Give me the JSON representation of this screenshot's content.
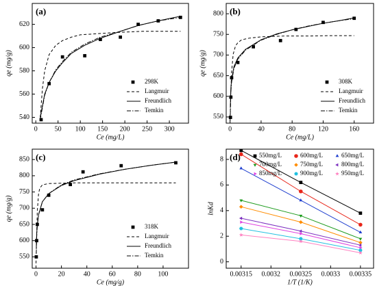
{
  "chart_data": [
    {
      "type": "scatter",
      "label": "(a)",
      "x_label": "Ce (mg/L)",
      "y_label": "qe (mg/g)",
      "xlim": [
        -8,
        343
      ],
      "ylim": [
        535,
        638
      ],
      "xticks": [
        0,
        50,
        100,
        150,
        200,
        250,
        300
      ],
      "yticks": [
        540,
        560,
        580,
        600,
        620
      ],
      "series": [
        {
          "name": "298K",
          "style": "markers",
          "color": "#000000",
          "x": [
            12,
            30,
            60,
            110,
            145,
            190,
            230,
            275,
            325
          ],
          "values": [
            538,
            569,
            592,
            593,
            607,
            609,
            620,
            623,
            626
          ]
        },
        {
          "name": "Langmuir",
          "style": "dashed",
          "color": "#000000",
          "x": [
            10,
            15,
            20,
            30,
            45,
            60,
            80,
            100,
            140,
            180,
            240,
            325
          ],
          "values": [
            540,
            565,
            580,
            594,
            602,
            606,
            609,
            611,
            612,
            613,
            614,
            614
          ]
        },
        {
          "name": "Freundlich",
          "style": "solid",
          "color": "#000000",
          "x": [
            10,
            20,
            30,
            45,
            60,
            80,
            110,
            145,
            190,
            230,
            275,
            325
          ],
          "values": [
            540,
            560,
            570,
            580,
            587,
            595,
            602,
            608,
            614,
            619,
            623,
            627
          ]
        },
        {
          "name": "Temkin",
          "style": "dash-dot",
          "color": "#000000",
          "x": [
            10,
            20,
            30,
            45,
            60,
            80,
            110,
            145,
            190,
            230,
            275,
            325
          ],
          "values": [
            538,
            559,
            570,
            581,
            588,
            596,
            603,
            609,
            614,
            619,
            623,
            626
          ]
        }
      ]
    },
    {
      "type": "scatter",
      "label": "(b)",
      "x_label": "Ce (mg/L)",
      "y_label": "qe (mg/g)",
      "xlim": [
        -5,
        185
      ],
      "ylim": [
        535,
        825
      ],
      "xticks": [
        0,
        40,
        80,
        120,
        160
      ],
      "yticks": [
        550,
        600,
        650,
        700,
        750,
        800
      ],
      "series": [
        {
          "name": "308K",
          "style": "markers",
          "color": "#000000",
          "x": [
            0.5,
            1,
            2,
            10,
            30,
            65,
            85,
            120,
            160
          ],
          "values": [
            549,
            598,
            645,
            682,
            720,
            735,
            762,
            779,
            789
          ]
        },
        {
          "name": "Langmuir",
          "style": "dashed",
          "color": "#000000",
          "x": [
            0,
            1,
            2,
            4,
            7,
            10,
            15,
            25,
            40,
            70,
            100,
            130,
            160
          ],
          "values": [
            540,
            612,
            660,
            702,
            722,
            730,
            737,
            741,
            744,
            746,
            746,
            747,
            747
          ]
        },
        {
          "name": "Freundlich",
          "style": "solid",
          "color": "#000000",
          "x": [
            0.3,
            1,
            2,
            5,
            10,
            20,
            40,
            60,
            80,
            100,
            120,
            140,
            160
          ],
          "values": [
            572,
            620,
            641,
            672,
            693,
            714,
            737,
            751,
            761,
            769,
            777,
            783,
            790
          ]
        },
        {
          "name": "Temkin",
          "style": "dash-dot",
          "color": "#000000",
          "x": [
            0.3,
            1,
            2,
            5,
            10,
            20,
            40,
            60,
            80,
            100,
            120,
            140,
            160
          ],
          "values": [
            555,
            610,
            635,
            668,
            690,
            712,
            736,
            750,
            761,
            770,
            777,
            783,
            788
          ]
        }
      ]
    },
    {
      "type": "scatter",
      "label": "(c)",
      "x_label": "Ce (mg/g)",
      "y_label": "qe (mg/g)",
      "xlim": [
        -3,
        120
      ],
      "ylim": [
        515,
        882
      ],
      "xticks": [
        0,
        20,
        40,
        60,
        80,
        100
      ],
      "yticks": [
        550,
        600,
        650,
        700,
        750,
        800,
        850
      ],
      "series": [
        {
          "name": "318K",
          "style": "markers",
          "color": "#000000",
          "x": [
            0.2,
            0.5,
            1,
            5,
            10,
            27,
            37,
            67,
            110
          ],
          "values": [
            550,
            600,
            650,
            695,
            740,
            773,
            812,
            831,
            840
          ]
        },
        {
          "name": "Langmuir",
          "style": "dashed",
          "color": "#000000",
          "x": [
            0,
            0.5,
            1,
            2,
            3,
            5,
            10,
            30,
            60,
            110
          ],
          "values": [
            530,
            620,
            690,
            745,
            762,
            772,
            776,
            778,
            778,
            778
          ]
        },
        {
          "name": "Freundlich",
          "style": "solid",
          "color": "#000000",
          "x": [
            0.2,
            0.5,
            1,
            2,
            5,
            10,
            20,
            30,
            50,
            70,
            90,
            110
          ],
          "values": [
            575,
            620,
            650,
            680,
            720,
            745,
            770,
            785,
            805,
            820,
            832,
            842
          ]
        },
        {
          "name": "Temkin",
          "style": "dash-dot",
          "color": "#000000",
          "x": [
            0.2,
            0.5,
            1,
            2,
            5,
            10,
            20,
            30,
            50,
            70,
            90,
            110
          ],
          "values": [
            560,
            610,
            645,
            680,
            720,
            745,
            772,
            787,
            806,
            820,
            832,
            842
          ]
        }
      ]
    },
    {
      "type": "scatter",
      "label": "(d)",
      "x_label": "1/T (1/K)",
      "y_label": "lnKd",
      "xlim": [
        0.003125,
        0.003372
      ],
      "ylim": [
        -0.5,
        8.8
      ],
      "xticks": [
        0.00315,
        0.0032,
        0.00325,
        0.0033,
        0.00335
      ],
      "yticks": [
        0,
        2,
        4,
        6,
        8
      ],
      "series": [
        {
          "name": "550mg/L",
          "style": "markers-line",
          "marker": "square",
          "color": "#000000",
          "x": [
            0.00315,
            0.00325,
            0.00335
          ],
          "values": [
            8.7,
            6.2,
            3.8
          ]
        },
        {
          "name": "600mg/L",
          "style": "markers-line",
          "marker": "circle",
          "color": "#e8261a",
          "x": [
            0.00315,
            0.00325,
            0.00335
          ],
          "values": [
            8.4,
            5.5,
            2.9
          ]
        },
        {
          "name": "650mg/L",
          "style": "markers-line",
          "marker": "triangle",
          "color": "#1f3fcf",
          "x": [
            0.00315,
            0.00325,
            0.00335
          ],
          "values": [
            7.3,
            4.8,
            2.3
          ]
        },
        {
          "name": "700mg/L",
          "style": "markers-line",
          "marker": "triangle-down",
          "color": "#1a9a1a",
          "x": [
            0.00315,
            0.00325,
            0.00335
          ],
          "values": [
            4.8,
            3.6,
            1.8
          ]
        },
        {
          "name": "750mg/L",
          "style": "markers-line",
          "marker": "diamond",
          "color": "#ff8c00",
          "x": [
            0.00315,
            0.00325,
            0.00335
          ],
          "values": [
            4.3,
            3.1,
            1.5
          ]
        },
        {
          "name": "800mg/L",
          "style": "markers-line",
          "marker": "triangle-left",
          "color": "#7b2fbf",
          "x": [
            0.00315,
            0.00325,
            0.00335
          ],
          "values": [
            3.4,
            2.4,
            1.3
          ]
        },
        {
          "name": "850mg/L",
          "style": "markers-line",
          "marker": "triangle-right",
          "color": "#e040e0",
          "x": [
            0.00315,
            0.00325,
            0.00335
          ],
          "values": [
            3.1,
            2.2,
            1.1
          ]
        },
        {
          "name": "900mg/L",
          "style": "markers-line",
          "marker": "hexagon",
          "color": "#20c0e0",
          "x": [
            0.00315,
            0.00325,
            0.00335
          ],
          "values": [
            2.6,
            1.8,
            0.9
          ]
        },
        {
          "name": "950mg/L",
          "style": "markers-line",
          "marker": "star",
          "color": "#ff80c0",
          "x": [
            0.00315,
            0.00325,
            0.00335
          ],
          "values": [
            2.1,
            1.6,
            0.7
          ]
        }
      ]
    }
  ]
}
